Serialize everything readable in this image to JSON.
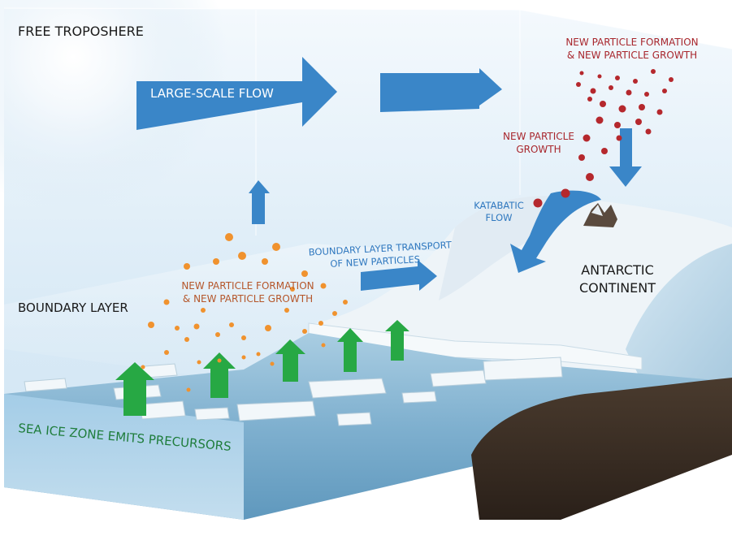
{
  "labels": {
    "free_troposphere": "FREE TROPOSHERE",
    "large_scale_flow": "LARGE-SCALE FLOW",
    "npf_top_line1": "NEW PARTICLE FORMATION",
    "npf_top_line2": "& NEW PARTICLE GROWTH",
    "npg_line1": "NEW PARTICLE",
    "npg_line2": "GROWTH",
    "katabatic_line1": "KATABATIC",
    "katabatic_line2": "FLOW",
    "bl_transport_line1": "BOUNDARY LAYER TRANSPORT",
    "bl_transport_line2": "OF NEW PARTICLES",
    "antarctic_line1": "ANTARCTIC",
    "antarctic_line2": "CONTINENT",
    "npf_bl_line1": "NEW PARTICLE FORMATION",
    "npf_bl_line2": "& NEW PARTICLE GROWTH",
    "boundary_layer": "BOUNDARY LAYER",
    "sea_ice_zone": "SEA ICE ZONE EMITS PRECURSORS"
  },
  "colors": {
    "flow_arrow": "#3a86c8",
    "upward_arrow": "#27a844",
    "orange_particle": "#f0922e",
    "red_particle": "#b5282d",
    "red_text": "#a8272d",
    "blue_text": "#2f78bf",
    "orange_text": "#b5562a",
    "green_text": "#1f7d3c"
  }
}
